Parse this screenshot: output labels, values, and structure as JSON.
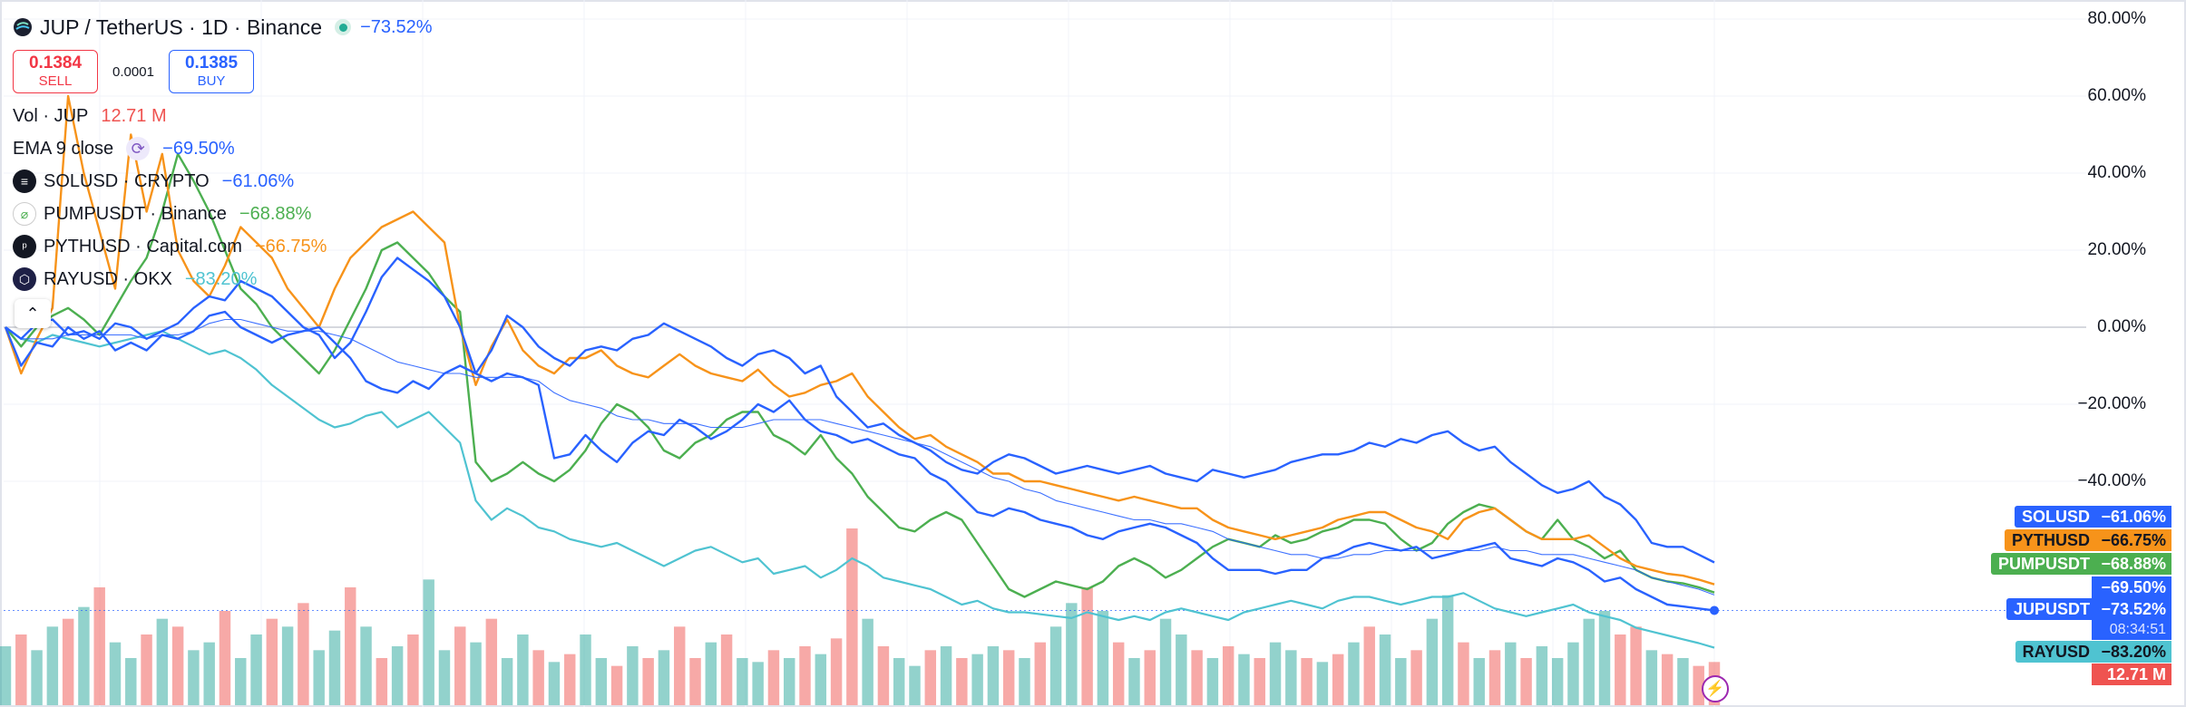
{
  "header": {
    "symbol": "JUP / TetherUS · 1D · Binance",
    "change": "−73.52%",
    "sell_price": "0.1384",
    "sell_label": "SELL",
    "spread": "0.0001",
    "buy_price": "0.1385",
    "buy_label": "BUY"
  },
  "legend": {
    "volume": {
      "name": "Vol · JUP",
      "value": "12.71 M"
    },
    "ema": {
      "name": "EMA 9 close",
      "value": "−69.50%"
    },
    "compare": [
      {
        "name": "SOLUSD · CRYPTO",
        "value": "−61.06%",
        "color": "#2962ff",
        "icon": "solana-icon"
      },
      {
        "name": "PUMPUSDT · Binance",
        "value": "−68.88%",
        "color": "#4caf50",
        "icon": "pump-icon"
      },
      {
        "name": "PYTHUSD · Capital.com",
        "value": "−66.75%",
        "color": "#f7931a",
        "icon": "pyth-icon"
      },
      {
        "name": "RAYUSD · OKX",
        "value": "−83.20%",
        "color": "#4fc3d1",
        "icon": "raydium-icon"
      }
    ]
  },
  "badges": {
    "solusd": {
      "name": "SOLUSD",
      "value": "−61.06%",
      "color": "#2962ff"
    },
    "pythusd": {
      "name": "PYTHUSD",
      "value": "−66.75%",
      "color": "#f7931a"
    },
    "pumpusdt": {
      "name": "PUMPUSDT",
      "value": "−68.88%",
      "color": "#4caf50"
    },
    "ema": {
      "value": "−69.50%",
      "color": "#2962ff"
    },
    "jupusdt": {
      "name": "JUPUSDT",
      "value": "−73.52%",
      "countdown": "08:34:51",
      "color": "#2962ff"
    },
    "rayusd": {
      "name": "RAYUSD",
      "value": "−83.20%",
      "color": "#4fc3d1"
    },
    "volume": {
      "value": "12.71 M",
      "color": "#ef5350"
    }
  },
  "chart_data": {
    "type": "line",
    "ylim": [
      -85,
      82
    ],
    "y_ticks": [
      "80.00%",
      "60.00%",
      "40.00%",
      "20.00%",
      "0.00%",
      "−20.00%",
      "−40.00%"
    ],
    "y_tick_values": [
      80,
      60,
      40,
      20,
      0,
      -20,
      -40
    ],
    "grid": true,
    "series": [
      {
        "name": "JUPUSDT",
        "color": "#2962ff",
        "width": 2.4,
        "values": [
          0,
          -10,
          -4,
          -5,
          0,
          -3,
          -1,
          -6,
          -4,
          -6,
          -2,
          -3,
          -1,
          3,
          4,
          0,
          -2,
          -4,
          -2,
          -1,
          0,
          -4,
          -8,
          -14,
          -16,
          -17,
          -14,
          -16,
          -12,
          -10,
          -12,
          -14,
          -12,
          -13,
          -15,
          -34,
          -33,
          -28,
          -32,
          -35,
          -30,
          -27,
          -28,
          -24,
          -26,
          -29,
          -27,
          -24,
          -20,
          -22,
          -19,
          -24,
          -27,
          -28,
          -30,
          -29,
          -31,
          -33,
          -34,
          -38,
          -40,
          -44,
          -48,
          -49,
          -47,
          -48,
          -50,
          -51,
          -52,
          -54,
          -55,
          -53,
          -52,
          -51,
          -52,
          -54,
          -56,
          -60,
          -63,
          -63,
          -63,
          -64,
          -63,
          -63,
          -60,
          -59,
          -57,
          -56,
          -57,
          -58,
          -57,
          -60,
          -59,
          -58,
          -57,
          -56,
          -60,
          -61,
          -62,
          -60,
          -61,
          -63,
          -66,
          -65,
          -68,
          -70,
          -72,
          -72.5,
          -73,
          -73.52
        ]
      },
      {
        "name": "SOLUSD",
        "color": "#2962ff",
        "width": 2.4,
        "values": [
          0,
          -3,
          1,
          2,
          -2,
          -1,
          -3,
          1,
          0,
          -3,
          -1,
          1,
          5,
          8,
          7,
          12,
          10,
          8,
          4,
          0,
          -2,
          -8,
          -4,
          4,
          13,
          18,
          15,
          12,
          8,
          0,
          -12,
          -6,
          3,
          0,
          -5,
          -8,
          -10,
          -6,
          -5,
          -6,
          -3,
          -2,
          1,
          -1,
          -3,
          -5,
          -8,
          -10,
          -7,
          -6,
          -8,
          -12,
          -10,
          -18,
          -22,
          -26,
          -25,
          -28,
          -30,
          -32,
          -35,
          -37,
          -38,
          -35,
          -33,
          -34,
          -36,
          -38,
          -37,
          -36,
          -37,
          -38,
          -37,
          -36,
          -38,
          -39,
          -40,
          -37,
          -38,
          -39,
          -38,
          -37,
          -35,
          -34,
          -33,
          -33,
          -32,
          -30,
          -31,
          -29,
          -30,
          -28,
          -27,
          -30,
          -32,
          -31,
          -35,
          -38,
          -41,
          -43,
          -42,
          -40,
          -44,
          -46,
          -50,
          -56,
          -57,
          -57,
          -59,
          -61.06
        ]
      },
      {
        "name": "PUMPUSDT",
        "color": "#4caf50",
        "width": 2.4,
        "values": [
          0,
          -5,
          0,
          3,
          5,
          2,
          -2,
          5,
          12,
          18,
          30,
          45,
          38,
          30,
          20,
          10,
          6,
          0,
          -4,
          -8,
          -12,
          -6,
          2,
          10,
          20,
          22,
          18,
          14,
          8,
          4,
          -35,
          -40,
          -38,
          -35,
          -38,
          -40,
          -37,
          -32,
          -25,
          -20,
          -22,
          -26,
          -32,
          -34,
          -30,
          -28,
          -24,
          -22,
          -22,
          -28,
          -30,
          -33,
          -28,
          -34,
          -38,
          -44,
          -48,
          -52,
          -53,
          -50,
          -48,
          -50,
          -56,
          -62,
          -68,
          -70,
          -68,
          -66,
          -67,
          -68,
          -66,
          -62,
          -60,
          -62,
          -65,
          -63,
          -60,
          -57,
          -55,
          -56,
          -57,
          -54,
          -56,
          -55,
          -53,
          -52,
          -50,
          -50,
          -51,
          -55,
          -58,
          -56,
          -51,
          -48,
          -46,
          -47,
          -50,
          -53,
          -55,
          -50,
          -55,
          -57,
          -60,
          -58,
          -63,
          -65,
          -66,
          -66.5,
          -67.5,
          -68.88
        ]
      },
      {
        "name": "PYTHUSD",
        "color": "#f7931a",
        "width": 2.4,
        "values": [
          0,
          -12,
          -3,
          5,
          60,
          40,
          25,
          10,
          50,
          30,
          45,
          20,
          12,
          8,
          16,
          26,
          22,
          18,
          10,
          5,
          0,
          10,
          18,
          22,
          26,
          28,
          30,
          26,
          22,
          0,
          -15,
          -5,
          2,
          -6,
          -10,
          -12,
          -8,
          -8,
          -6,
          -10,
          -12,
          -13,
          -10,
          -7,
          -10,
          -12,
          -13,
          -14,
          -11,
          -15,
          -18,
          -17,
          -15,
          -14,
          -12,
          -18,
          -22,
          -26,
          -29,
          -28,
          -31,
          -33,
          -35,
          -38,
          -38,
          -40,
          -40,
          -41,
          -42,
          -43,
          -44,
          -45,
          -44,
          -45,
          -46,
          -47,
          -47,
          -50,
          -52,
          -53,
          -54,
          -55,
          -54,
          -53,
          -52,
          -50,
          -49,
          -48,
          -48,
          -50,
          -52,
          -53,
          -55,
          -50,
          -48,
          -47,
          -50,
          -53,
          -55,
          -55,
          -55,
          -54,
          -57,
          -60,
          -62,
          -63,
          -64,
          -64.5,
          -65.5,
          -66.75
        ]
      },
      {
        "name": "RAYUSD",
        "color": "#4fc3d1",
        "width": 2.2,
        "values": [
          0,
          -3,
          -4,
          -2,
          -3,
          -4,
          -5,
          -4,
          -3,
          -2,
          -1,
          -3,
          -5,
          -7,
          -6,
          -8,
          -11,
          -15,
          -18,
          -21,
          -24,
          -26,
          -25,
          -23,
          -22,
          -26,
          -24,
          -22,
          -26,
          -30,
          -45,
          -50,
          -47,
          -49,
          -52,
          -53,
          -55,
          -56,
          -57,
          -56,
          -58,
          -60,
          -62,
          -60,
          -58,
          -57,
          -59,
          -61,
          -60,
          -64,
          -63,
          -62,
          -65,
          -63,
          -60,
          -62,
          -65,
          -66,
          -67,
          -68,
          -70,
          -72,
          -71,
          -73,
          -74,
          -74,
          -74.5,
          -75,
          -75.5,
          -74,
          -75,
          -76,
          -75,
          -76,
          -74,
          -73,
          -74,
          -75,
          -76,
          -74,
          -73,
          -72,
          -71,
          -72,
          -73,
          -71,
          -70,
          -70,
          -71,
          -72,
          -71,
          -70,
          -70,
          -69,
          -71,
          -73,
          -74,
          -75,
          -74,
          -73,
          -72,
          -74,
          -75,
          -76,
          -78,
          -79,
          -80,
          -81,
          -82,
          -83.2
        ]
      },
      {
        "name": "EMA 9 close",
        "color": "#2962ff",
        "width": 1.1,
        "values": [
          0,
          -3,
          -3,
          -3,
          -2,
          -2,
          -2,
          -2,
          -2,
          -3,
          -2,
          -2,
          -1,
          1,
          2,
          2,
          1,
          0,
          -1,
          -1,
          -1,
          -2,
          -3,
          -5,
          -7,
          -9,
          -10,
          -11,
          -12,
          -12,
          -13,
          -13,
          -13,
          -13,
          -14,
          -17,
          -19,
          -20,
          -21,
          -23,
          -24,
          -24,
          -25,
          -25,
          -25,
          -26,
          -26,
          -26,
          -25,
          -24,
          -24,
          -24,
          -24,
          -25,
          -26,
          -27,
          -28,
          -29,
          -30,
          -31,
          -33,
          -35,
          -37,
          -39,
          -40,
          -42,
          -43,
          -45,
          -46,
          -47,
          -48,
          -49,
          -50,
          -50,
          -51,
          -51,
          -52,
          -53,
          -55,
          -56,
          -57,
          -58,
          -59,
          -59,
          -60,
          -60,
          -59,
          -59,
          -58,
          -58,
          -58,
          -58,
          -58,
          -58,
          -58,
          -57,
          -58,
          -58,
          -59,
          -59,
          -59,
          -60,
          -61,
          -62,
          -63,
          -65,
          -66,
          -67,
          -68,
          -69.5
        ]
      }
    ],
    "volume": {
      "label": "Vol · JUP",
      "up_color": "#26a69a",
      "down_color": "#ef5350",
      "values": [
        0.15,
        0.18,
        0.14,
        0.2,
        0.22,
        0.25,
        0.3,
        0.16,
        0.12,
        0.18,
        0.22,
        0.2,
        0.14,
        0.16,
        0.24,
        0.12,
        0.18,
        0.22,
        0.2,
        0.26,
        0.14,
        0.19,
        0.3,
        0.2,
        0.12,
        0.15,
        0.18,
        0.32,
        0.14,
        0.2,
        0.16,
        0.22,
        0.12,
        0.18,
        0.14,
        0.11,
        0.13,
        0.18,
        0.12,
        0.1,
        0.15,
        0.12,
        0.14,
        0.2,
        0.12,
        0.16,
        0.18,
        0.12,
        0.11,
        0.14,
        0.12,
        0.15,
        0.13,
        0.17,
        0.45,
        0.22,
        0.15,
        0.12,
        0.1,
        0.14,
        0.15,
        0.12,
        0.13,
        0.15,
        0.14,
        0.12,
        0.16,
        0.2,
        0.26,
        0.3,
        0.24,
        0.16,
        0.12,
        0.14,
        0.22,
        0.18,
        0.14,
        0.12,
        0.15,
        0.13,
        0.12,
        0.16,
        0.14,
        0.12,
        0.11,
        0.13,
        0.16,
        0.2,
        0.18,
        0.12,
        0.14,
        0.22,
        0.28,
        0.16,
        0.12,
        0.14,
        0.16,
        0.12,
        0.15,
        0.12,
        0.16,
        0.22,
        0.24,
        0.18,
        0.2,
        0.14,
        0.13,
        0.12,
        0.1,
        0.11
      ],
      "up": [
        1,
        0,
        1,
        1,
        0,
        1,
        0,
        1,
        1,
        0,
        1,
        0,
        1,
        1,
        0,
        1,
        1,
        0,
        1,
        0,
        1,
        1,
        0,
        1,
        0,
        1,
        0,
        1,
        1,
        0,
        1,
        0,
        1,
        1,
        0,
        1,
        0,
        1,
        1,
        0,
        1,
        0,
        1,
        0,
        0,
        1,
        0,
        1,
        1,
        0,
        1,
        0,
        1,
        0,
        0,
        1,
        0,
        1,
        1,
        0,
        1,
        0,
        1,
        1,
        0,
        1,
        0,
        1,
        1,
        0,
        1,
        0,
        1,
        0,
        1,
        1,
        0,
        1,
        0,
        1,
        0,
        1,
        1,
        0,
        1,
        0,
        1,
        0,
        1,
        1,
        0,
        1,
        1,
        0,
        1,
        0,
        1,
        0,
        1,
        1,
        1,
        1,
        1,
        0,
        0,
        1,
        0,
        1,
        0,
        0
      ]
    }
  }
}
